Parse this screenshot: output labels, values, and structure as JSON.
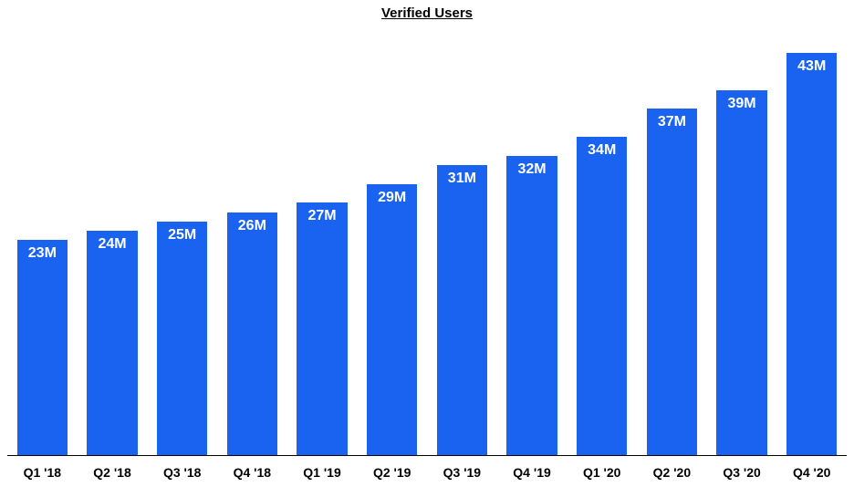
{
  "chart": {
    "type": "bar",
    "title": "Verified Users",
    "title_fontsize": 15,
    "title_fontweight": 700,
    "title_underline": true,
    "title_color": "#000000",
    "background_color": "#ffffff",
    "axis_line_color": "#000000",
    "bar_color": "#1a63f0",
    "bar_label_color": "#ffffff",
    "bar_label_fontsize": 16,
    "bar_label_fontweight": 700,
    "x_label_color": "#000000",
    "x_label_fontsize": 14,
    "x_label_fontweight": 700,
    "bar_width_ratio": 0.72,
    "ylim": [
      0,
      45
    ],
    "data": [
      {
        "category": "Q1 '18",
        "value": 23,
        "label": "23M"
      },
      {
        "category": "Q2 '18",
        "value": 24,
        "label": "24M"
      },
      {
        "category": "Q3 '18",
        "value": 25,
        "label": "25M"
      },
      {
        "category": "Q4 '18",
        "value": 26,
        "label": "26M"
      },
      {
        "category": "Q1 '19",
        "value": 27,
        "label": "27M"
      },
      {
        "category": "Q2 '19",
        "value": 29,
        "label": "29M"
      },
      {
        "category": "Q3 '19",
        "value": 31,
        "label": "31M"
      },
      {
        "category": "Q4 '19",
        "value": 32,
        "label": "32M"
      },
      {
        "category": "Q1 '20",
        "value": 34,
        "label": "34M"
      },
      {
        "category": "Q2 '20",
        "value": 37,
        "label": "37M"
      },
      {
        "category": "Q3 '20",
        "value": 39,
        "label": "39M"
      },
      {
        "category": "Q4 '20",
        "value": 43,
        "label": "43M"
      }
    ]
  }
}
